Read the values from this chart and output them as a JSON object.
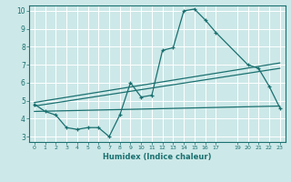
{
  "xlabel": "Humidex (Indice chaleur)",
  "bg_color": "#cde8e8",
  "line_color": "#1a7070",
  "grid_color": "#b8d8d8",
  "xlim": [
    -0.5,
    23.5
  ],
  "ylim": [
    2.7,
    10.3
  ],
  "yticks": [
    3,
    4,
    5,
    6,
    7,
    8,
    9,
    10
  ],
  "xtick_positions": [
    0,
    1,
    2,
    3,
    4,
    5,
    6,
    7,
    8,
    9,
    10,
    11,
    12,
    13,
    14,
    15,
    16,
    17,
    19,
    20,
    21,
    22,
    23
  ],
  "xtick_labels": [
    "0",
    "1",
    "2",
    "3",
    "4",
    "5",
    "6",
    "7",
    "8",
    "9",
    "10",
    "11",
    "12",
    "13",
    "14",
    "15",
    "16",
    "17",
    "19",
    "20",
    "21",
    "22",
    "23"
  ],
  "line1_x": [
    0,
    1,
    2,
    3,
    4,
    5,
    6,
    7,
    8,
    9,
    10,
    11,
    12,
    13,
    14,
    15,
    16,
    17,
    20,
    21,
    22,
    23
  ],
  "line1_y": [
    4.8,
    4.4,
    4.2,
    3.5,
    3.4,
    3.5,
    3.5,
    3.0,
    4.2,
    6.0,
    5.2,
    5.3,
    7.8,
    7.95,
    10.0,
    10.1,
    9.5,
    8.8,
    7.0,
    6.8,
    5.8,
    4.6
  ],
  "line2_x": [
    0,
    23
  ],
  "line2_y": [
    4.9,
    7.1
  ],
  "line3_x": [
    0,
    23
  ],
  "line3_y": [
    4.7,
    6.8
  ],
  "line4_x": [
    0,
    23
  ],
  "line4_y": [
    4.4,
    4.7
  ]
}
